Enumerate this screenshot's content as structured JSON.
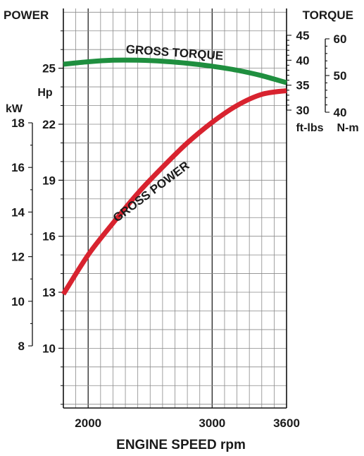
{
  "chart_data": {
    "type": "line",
    "xlabel": "ENGINE SPEED rpm",
    "x_ticks": [
      2000,
      3000,
      3600
    ],
    "xlim": [
      1800,
      3600
    ],
    "left_title": "POWER",
    "right_title": "TORQUE",
    "hp_axis": {
      "label": "Hp",
      "ticks": [
        10,
        13,
        16,
        19,
        22,
        25
      ],
      "lim": [
        6.8,
        28.2
      ]
    },
    "kw_axis": {
      "label": "kW",
      "ticks": [
        8,
        10,
        12,
        14,
        16,
        18
      ]
    },
    "ftlbs_axis": {
      "label": "ft-lbs",
      "ticks": [
        30,
        35,
        40,
        45
      ]
    },
    "nm_axis": {
      "label": "N-m",
      "ticks": [
        40,
        50,
        60
      ]
    },
    "series": [
      {
        "name": "GROSS TORQUE",
        "axis": "ft-lbs",
        "color": "#1f8f3f",
        "x": [
          1800,
          2000,
          2200,
          2400,
          2600,
          2800,
          3000,
          3200,
          3400,
          3600
        ],
        "y": [
          39.2,
          39.7,
          40.0,
          40.0,
          39.8,
          39.4,
          38.8,
          38.0,
          36.9,
          35.5
        ]
      },
      {
        "name": "GROSS POWER",
        "axis": "Hp",
        "color": "#d8232f",
        "x": [
          1800,
          2000,
          2200,
          2400,
          2600,
          2800,
          3000,
          3200,
          3400,
          3600
        ],
        "y": [
          12.9,
          15.0,
          16.7,
          18.3,
          19.7,
          21.0,
          22.1,
          23.0,
          23.6,
          23.8
        ]
      }
    ]
  }
}
